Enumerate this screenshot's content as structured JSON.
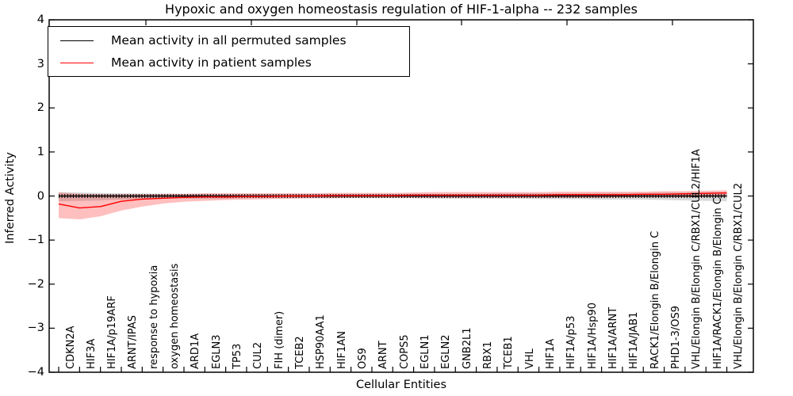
{
  "chart_data": {
    "type": "line",
    "title": "Hypoxic and oxygen homeostasis regulation of HIF-1-alpha -- 232 samples",
    "xlabel": "Cellular Entities",
    "ylabel": "Inferred Activity",
    "ylim": [
      -4,
      4
    ],
    "yticks": [
      4,
      3,
      2,
      1,
      0,
      -1,
      -2,
      -3,
      -4
    ],
    "grid": false,
    "legend_position": "upper left",
    "categories": [
      "CDKN2A",
      "HIF3A",
      "HIF1A/p19ARF",
      "ARNT/IPAS",
      "response to hypoxia",
      "oxygen homeostasis",
      "ARD1A",
      "EGLN3",
      "TP53",
      "CUL2",
      "FIH (dimer)",
      "TCEB2",
      "HSP90AA1",
      "HIF1AN",
      "OS9",
      "ARNT",
      "COPS5",
      "EGLN1",
      "EGLN2",
      "GNB2L1",
      "RBX1",
      "TCEB1",
      "VHL",
      "HIF1A",
      "HIF1A/p53",
      "HIF1A/Hsp90",
      "HIF1A/ARNT",
      "HIF1A/JAB1",
      "RACK1/Elongin B/Elongin C",
      "PHD1-3/OS9",
      "VHL/Elongin B/Elongin C/RBX1/CUL2/HIF1A",
      "HIF1A/RACK1/Elongin B/Elongin C",
      "VHL/Elongin B/Elongin C/RBX1/CUL2"
    ],
    "series": [
      {
        "name": "Mean activity in all permuted samples",
        "color": "#000000",
        "marker": "vertical-tick",
        "values": [
          0,
          0,
          0,
          0,
          0,
          0,
          0,
          0,
          0,
          0,
          0,
          0,
          0,
          0,
          0,
          0,
          0,
          0,
          0,
          0,
          0,
          0,
          0,
          0,
          0,
          0,
          0,
          0,
          0,
          0,
          0,
          0,
          0
        ],
        "band_upper": [
          0.09,
          0.08,
          0.07,
          0.06,
          0.06,
          0.05,
          0.05,
          0.05,
          0.05,
          0.05,
          0.05,
          0.05,
          0.05,
          0.05,
          0.05,
          0.05,
          0.05,
          0.05,
          0.05,
          0.05,
          0.05,
          0.06,
          0.06,
          0.06,
          0.06,
          0.06,
          0.07,
          0.07,
          0.07,
          0.08,
          0.08,
          0.09,
          0.09
        ],
        "band_lower": [
          -0.12,
          -0.11,
          -0.1,
          -0.08,
          -0.07,
          -0.06,
          -0.06,
          -0.06,
          -0.06,
          -0.05,
          -0.05,
          -0.05,
          -0.05,
          -0.05,
          -0.05,
          -0.05,
          -0.05,
          -0.05,
          -0.06,
          -0.06,
          -0.06,
          -0.06,
          -0.06,
          -0.07,
          -0.07,
          -0.07,
          -0.08,
          -0.08,
          -0.08,
          -0.09,
          -0.1,
          -0.11,
          -0.12
        ],
        "band_color": "rgba(128,128,128,0.30)"
      },
      {
        "name": "Mean activity in patient samples",
        "color": "#ff0000",
        "marker": "none",
        "values": [
          -0.18,
          -0.27,
          -0.24,
          -0.12,
          -0.07,
          -0.05,
          -0.03,
          -0.02,
          -0.02,
          -0.01,
          -0.01,
          0.0,
          0.0,
          0.01,
          0.01,
          0.01,
          0.01,
          0.02,
          0.02,
          0.02,
          0.02,
          0.02,
          0.02,
          0.02,
          0.03,
          0.03,
          0.03,
          0.03,
          0.04,
          0.04,
          0.05,
          0.06,
          0.07
        ],
        "band_upper": [
          0.08,
          0.05,
          0.04,
          0.04,
          0.04,
          0.05,
          0.05,
          0.06,
          0.06,
          0.06,
          0.06,
          0.06,
          0.06,
          0.07,
          0.07,
          0.07,
          0.07,
          0.08,
          0.09,
          0.09,
          0.09,
          0.09,
          0.09,
          0.09,
          0.1,
          0.1,
          0.1,
          0.1,
          0.1,
          0.11,
          0.11,
          0.12,
          0.13
        ],
        "band_lower": [
          -0.5,
          -0.53,
          -0.46,
          -0.33,
          -0.24,
          -0.17,
          -0.13,
          -0.11,
          -0.09,
          -0.08,
          -0.07,
          -0.06,
          -0.05,
          -0.05,
          -0.04,
          -0.04,
          -0.04,
          -0.04,
          -0.04,
          -0.04,
          -0.04,
          -0.04,
          -0.04,
          -0.04,
          -0.04,
          -0.04,
          -0.04,
          -0.03,
          -0.03,
          -0.03,
          -0.03,
          -0.02,
          -0.02
        ],
        "band_color": "rgba(255,0,0,0.25)"
      }
    ]
  }
}
